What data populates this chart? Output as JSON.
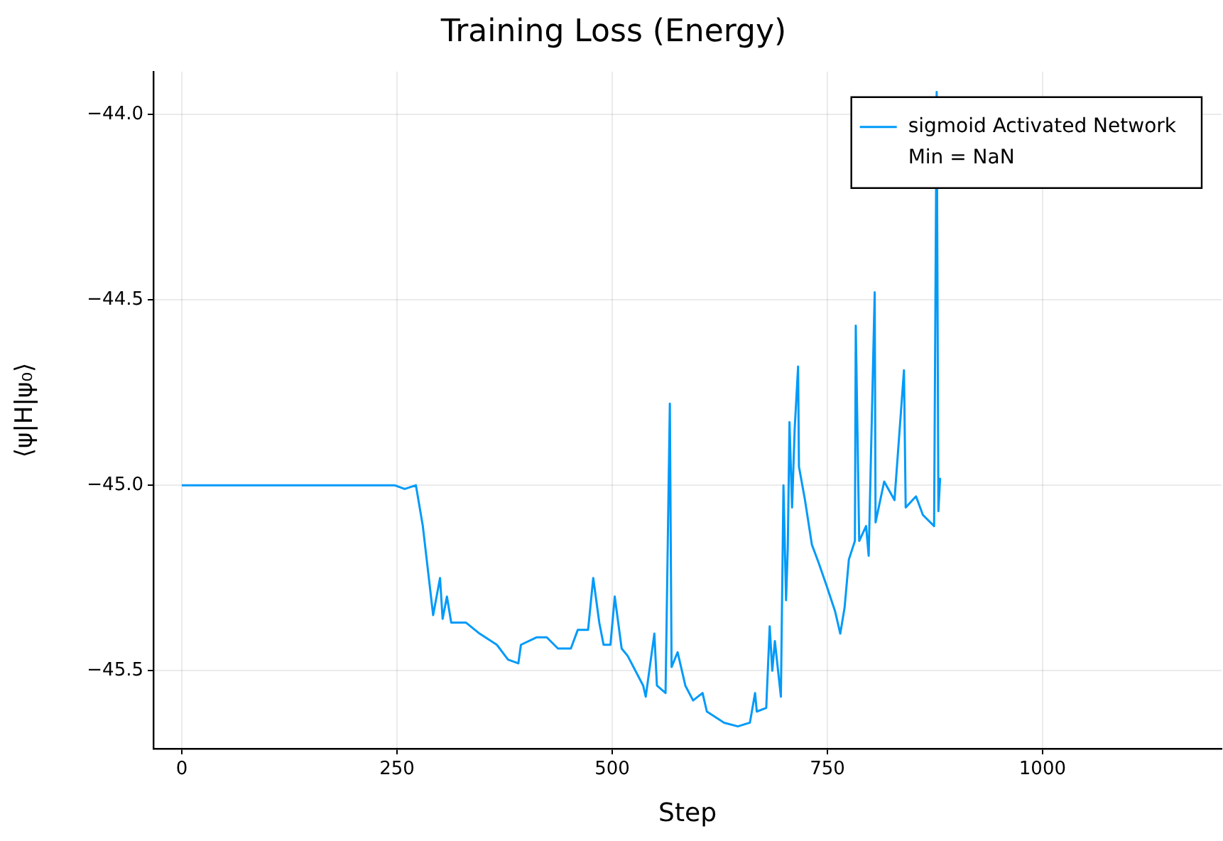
{
  "chart_data": {
    "type": "line",
    "title": "Training Loss (Energy)",
    "xlabel": "Step",
    "ylabel": "⟨ψ|H|ψ₀⟩",
    "x": [
      0,
      221,
      234,
      247,
      259,
      272,
      280,
      292,
      300,
      303,
      308,
      313,
      330,
      346,
      366,
      379,
      391,
      394,
      412,
      424,
      437,
      452,
      460,
      472,
      478,
      485,
      490,
      498,
      503,
      511,
      518,
      536,
      539,
      549,
      552,
      562,
      567,
      569,
      576,
      585,
      594,
      605,
      610,
      630,
      646,
      660,
      666,
      668,
      679,
      683,
      686,
      689,
      696,
      699,
      702,
      704,
      706,
      709,
      712,
      716,
      717,
      724,
      732,
      740,
      749,
      759,
      765,
      770,
      775,
      782,
      783,
      787,
      795,
      798,
      805,
      806,
      816,
      828,
      839,
      841,
      853,
      861,
      874,
      877,
      879,
      881
    ],
    "series": [
      {
        "name": "sigmoid Activated Network",
        "color": "#009af9",
        "values": [
          -45.0,
          -45.0,
          -45.0,
          -45.0,
          -45.01,
          -45.0,
          -45.11,
          -45.35,
          -45.25,
          -45.36,
          -45.3,
          -45.37,
          -45.37,
          -45.4,
          -45.43,
          -45.47,
          -45.48,
          -45.43,
          -45.41,
          -45.41,
          -45.44,
          -45.44,
          -45.39,
          -45.39,
          -45.25,
          -45.37,
          -45.43,
          -45.43,
          -45.3,
          -45.44,
          -45.46,
          -45.54,
          -45.57,
          -45.4,
          -45.54,
          -45.56,
          -44.78,
          -45.49,
          -45.45,
          -45.54,
          -45.58,
          -45.56,
          -45.61,
          -45.64,
          -45.65,
          -45.64,
          -45.56,
          -45.61,
          -45.6,
          -45.38,
          -45.5,
          -45.42,
          -45.57,
          -45.0,
          -45.31,
          -45.17,
          -44.83,
          -45.06,
          -44.85,
          -44.68,
          -44.95,
          -45.04,
          -45.16,
          -45.21,
          -45.27,
          -45.34,
          -45.4,
          -45.33,
          -45.2,
          -45.15,
          -44.57,
          -45.15,
          -45.11,
          -45.19,
          -44.48,
          -45.1,
          -44.99,
          -45.04,
          -44.69,
          -45.06,
          -45.03,
          -45.08,
          -45.11,
          -43.94,
          -45.07,
          -44.98
        ]
      }
    ],
    "annotations": [
      "Min = NaN"
    ],
    "xlim": [
      -33,
      1208
    ],
    "xticks": [
      0,
      250,
      500,
      750,
      1000
    ],
    "ylim": [
      -45.71,
      -43.885
    ],
    "yticks": [
      {
        "value": -45.5,
        "label": "−45.5"
      },
      {
        "value": -45,
        "label": "−45.0"
      },
      {
        "value": -44.5,
        "label": "−44.5"
      },
      {
        "value": -44,
        "label": "−44.0"
      }
    ],
    "grid": true,
    "legend": "top right",
    "marker": "none",
    "line_style": "solid"
  }
}
